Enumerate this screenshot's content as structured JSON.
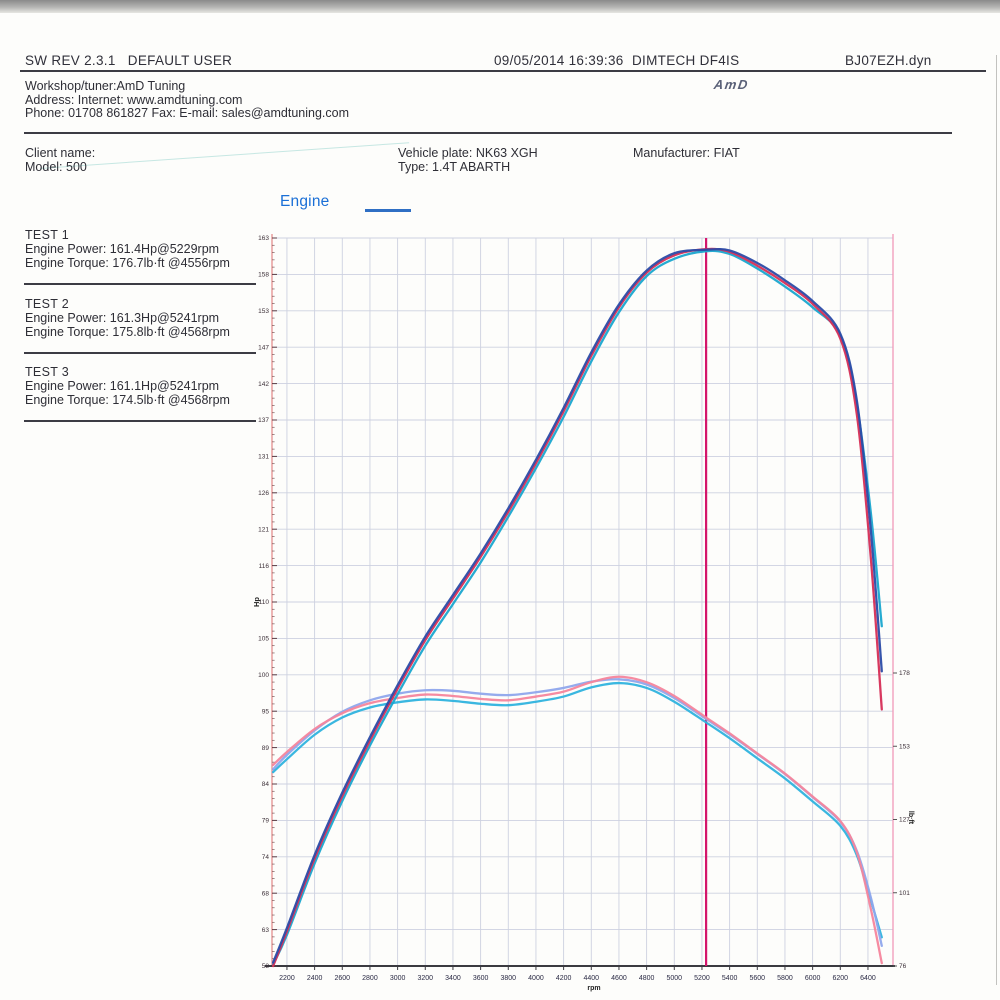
{
  "header": {
    "sw_rev": "SW REV 2.3.1",
    "user": "DEFAULT USER",
    "datetime": "09/05/2014 16:39:36",
    "device": "DIMTECH DF4IS",
    "filename": "BJ07EZH.dyn",
    "logo": "AmD"
  },
  "workshop": {
    "tuner": "Workshop/tuner:AmD Tuning",
    "address": "Address:  Internet: www.amdtuning.com",
    "phone": "Phone: 01708 861827 Fax:  E-mail: sales@amdtuning.com"
  },
  "vehicle": {
    "client": "Client name:",
    "model": "Model: 500",
    "plate": "Vehicle plate: NK63 XGH",
    "type": "Type: 1.4T ABARTH",
    "manufacturer": "Manufacturer: FIAT"
  },
  "legend": {
    "title": "Engine"
  },
  "tests": [
    {
      "name": "TEST 1",
      "power": "Engine Power: 161.4Hp@5229rpm",
      "torque": "Engine Torque: 176.7lb·ft @4556rpm"
    },
    {
      "name": "TEST 2",
      "power": "Engine Power: 161.3Hp@5241rpm",
      "torque": "Engine Torque: 175.8lb·ft @4568rpm"
    },
    {
      "name": "TEST 3",
      "power": "Engine Power: 161.1Hp@5241rpm",
      "torque": "Engine Torque: 174.5lb·ft @4568rpm"
    }
  ],
  "chart_data": {
    "type": "line",
    "title": "Engine",
    "grid": true,
    "legend_position": "top-left-text-blocks",
    "x_axis": {
      "label": "rpm",
      "ticks": [
        2200,
        2400,
        2600,
        2800,
        3000,
        3200,
        3400,
        3600,
        3800,
        4000,
        4200,
        4400,
        4600,
        4800,
        5000,
        5200,
        5400,
        5600,
        5800,
        6000,
        6200,
        6400
      ],
      "range": [
        2092,
        6581
      ]
    },
    "y_left": {
      "label": "Hp",
      "tick_labels": [
        "163",
        "158",
        "153",
        "147",
        "142",
        "137",
        "131",
        "126",
        "121",
        "116",
        "110",
        "105",
        "100",
        "95",
        "89",
        "84",
        "79",
        "74",
        "68",
        "63",
        "58"
      ],
      "range": [
        58,
        163
      ]
    },
    "y_right": {
      "label": "lb·ft",
      "tick_labels": [
        "178",
        "153",
        "127",
        "101",
        "76"
      ],
      "range": [
        76,
        178
      ]
    },
    "marker_rpm": 5230,
    "marker_color": "#d4156b",
    "rpm_points": [
      2100,
      2200,
      2400,
      2600,
      2800,
      3000,
      3200,
      3400,
      3600,
      3800,
      4000,
      4200,
      4400,
      4600,
      4800,
      5000,
      5230,
      5400,
      5600,
      5800,
      6000,
      6200,
      6320,
      6420,
      6500
    ],
    "series": [
      {
        "name": "Test 1 Power",
        "unit": "Hp",
        "axis": "left",
        "color": "#d62e56",
        "values": [
          58,
          63,
          73.5,
          82.5,
          90.5,
          98,
          105,
          111,
          117,
          123.5,
          130.5,
          138,
          146,
          153,
          158,
          160.5,
          161.4,
          161,
          159,
          156.5,
          153.5,
          148.5,
          137.5,
          117,
          95
        ]
      },
      {
        "name": "Test 2 Power",
        "unit": "Hp",
        "axis": "left",
        "color": "#2b4ba6",
        "values": [
          58.5,
          63.5,
          74,
          83,
          91,
          98.5,
          105.5,
          111.5,
          117.5,
          124,
          131,
          138.5,
          146.5,
          153.4,
          158.3,
          160.8,
          161.3,
          161.2,
          159.4,
          156.9,
          153.9,
          149.2,
          139.5,
          121,
          100.5
        ]
      },
      {
        "name": "Test 3 Power",
        "unit": "Hp",
        "axis": "left",
        "color": "#1aa7cf",
        "values": [
          58.2,
          62.5,
          72.8,
          81.8,
          89.8,
          97.2,
          104.2,
          110.2,
          116.2,
          122.8,
          129.8,
          137.2,
          145.2,
          152.3,
          157.5,
          160,
          161.1,
          160.7,
          158.6,
          156,
          153,
          148.9,
          139,
          123.5,
          107
        ]
      },
      {
        "name": "Test 1 Torque",
        "unit": "lb·ft",
        "axis": "right",
        "color": "#f5859c",
        "values": [
          146,
          150.5,
          158.5,
          164,
          167.5,
          169.3,
          170.5,
          170,
          169,
          168.5,
          169.8,
          171.5,
          174.8,
          176.7,
          174.8,
          170,
          162.5,
          157,
          150,
          143,
          135,
          126.5,
          115.5,
          96,
          77
        ]
      },
      {
        "name": "Test 2 Torque",
        "unit": "lb·ft",
        "axis": "right",
        "color": "#8fa6ec",
        "values": [
          144.5,
          149.5,
          158,
          164.5,
          168.5,
          170.8,
          172,
          171.8,
          170.8,
          170.3,
          171.3,
          172.8,
          175,
          175.8,
          174,
          169.3,
          162,
          156.6,
          149.8,
          142.8,
          134.8,
          126.2,
          116,
          100,
          83
        ]
      },
      {
        "name": "Test 3 Torque",
        "unit": "lb·ft",
        "axis": "right",
        "color": "#2fb3de",
        "values": [
          143.5,
          148,
          156.5,
          162.5,
          166,
          167.8,
          168.8,
          168.3,
          167.3,
          166.8,
          168,
          169.8,
          173,
          174.5,
          172.8,
          168,
          160.8,
          155.3,
          148.3,
          141.3,
          133.3,
          124.8,
          114.5,
          99,
          86
        ]
      }
    ]
  }
}
